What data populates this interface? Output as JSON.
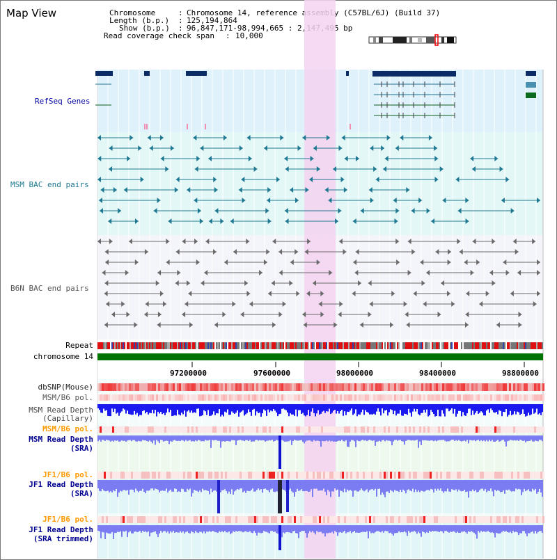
{
  "header": {
    "title": "Map View",
    "rows": [
      {
        "key": "Chromosome",
        "value": "Chromosome 14, reference assembly (C57BL/6J) (Build 37)"
      },
      {
        "key": "Length (b.p.)",
        "value": "125,194,864"
      },
      {
        "key": "Show (b.p.)",
        "value": "96,847,171-98,994,665 : 2,147,495 bp"
      },
      {
        "key": "Read coverage check span",
        "value": "10,000"
      }
    ]
  },
  "tracks": {
    "refseq": "RefSeq Genes",
    "msm_bac": "MSM BAC end pairs",
    "b6n_bac": "B6N BAC end pairs",
    "repeat": "Repeat",
    "chromosome": "chromosome 14",
    "dbsnp": "dbSNP(Mouse)",
    "msm_b6_pol_1": "MSM/B6 pol.",
    "msm_depth_cap_1": "MSM Read Depth",
    "msm_depth_cap_2": "(Capillary)",
    "msm_b6_pol_2": "MSM/B6 pol.",
    "msm_depth_sra_1": "MSM Read Depth",
    "msm_depth_sra_2": "(SRA)",
    "jf1_b6_pol_1": "JF1/B6 pol.",
    "jf1_depth_sra_1": "JF1 Read Depth",
    "jf1_depth_sra_2": "(SRA)",
    "jf1_b6_pol_2": "JF1/B6 pol.",
    "jf1_depth_trim_1": "JF1 Read Depth",
    "jf1_depth_trim_2": "(SRA trimmed)"
  },
  "axis": {
    "ticks": [
      "97200000",
      "97600000",
      "98000000",
      "98400000",
      "98800000"
    ]
  },
  "colors": {
    "refseq_bg": "#dff1fa",
    "msm_bg": "#e4f7f7",
    "b6n_bg": "#f4f4fb",
    "highlight": "#f4d2f0",
    "refseq_dark": "#0a2b66",
    "msm_teal": "#1f7891",
    "b6n_gray": "#6a6a6a",
    "chrom_green": "#007300",
    "orange": "#ff9900",
    "navy": "#000090"
  }
}
